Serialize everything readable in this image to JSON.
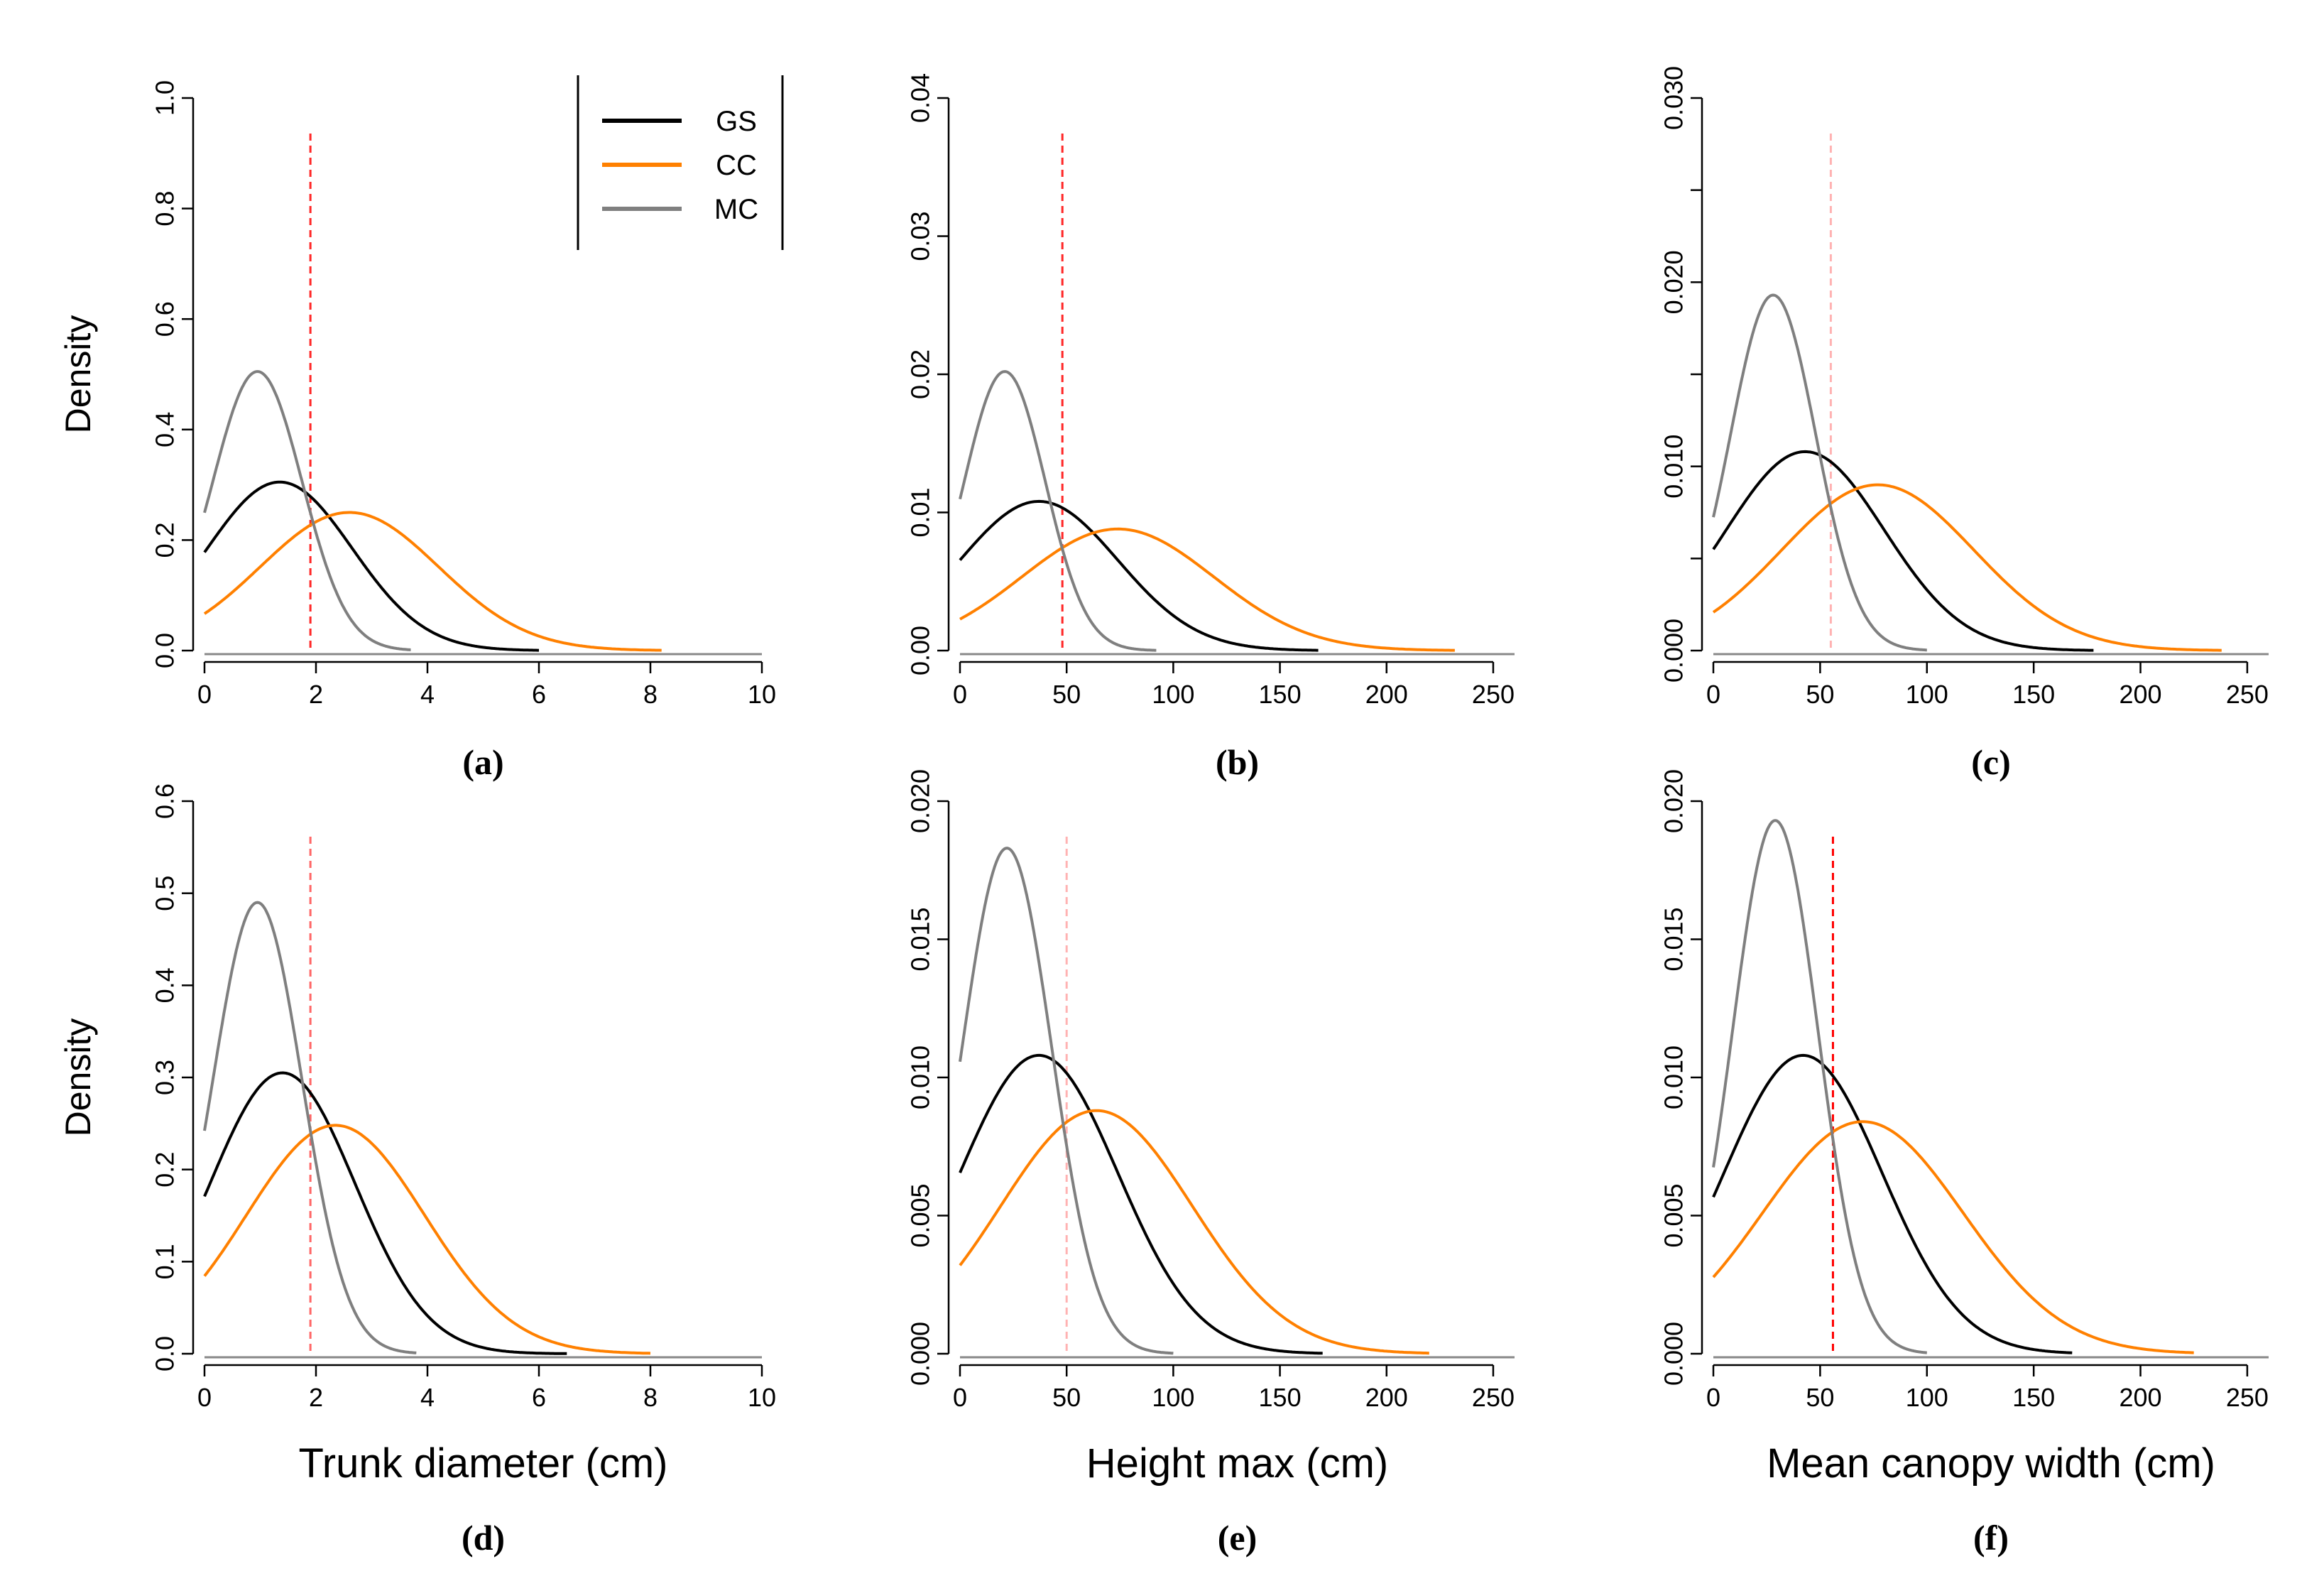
{
  "colors": {
    "GS": "#000000",
    "CC": "#ff8000",
    "MC": "#7f7f7f",
    "threshold": "#ff0000"
  },
  "legend": {
    "entries": [
      {
        "name": "GS",
        "color": "#000000"
      },
      {
        "name": "CC",
        "color": "#ff8000"
      },
      {
        "name": "MC",
        "color": "#7f7f7f"
      }
    ],
    "placement": "top-right of panel (a)"
  },
  "chart_data": [
    {
      "id": "a",
      "type": "line",
      "panel_label": "(a)",
      "xlabel": "",
      "ylabel": "Density",
      "xlim": [
        0,
        10
      ],
      "ylim": [
        0,
        1.0
      ],
      "xticks": [
        0,
        2,
        4,
        6,
        8,
        10
      ],
      "xtick_labels": [
        "0",
        "2",
        "4",
        "6",
        "8",
        "10"
      ],
      "yticks": [
        0,
        0.2,
        0.4,
        0.6,
        0.8,
        1.0
      ],
      "ytick_labels": [
        "0.0",
        "0.2",
        "0.4",
        "0.6",
        "0.8",
        "1.0"
      ],
      "threshold_x": 1.9,
      "threshold_opacity": 0.85,
      "series": [
        {
          "name": "GS",
          "peak_x": 1.35,
          "peak_y": 0.305,
          "sd": 1.3,
          "x_end": 6.0
        },
        {
          "name": "CC",
          "peak_x": 2.6,
          "peak_y": 0.25,
          "sd": 1.6,
          "x_end": 8.2
        },
        {
          "name": "MC",
          "peak_x": 0.95,
          "peak_y": 0.505,
          "sd": 0.8,
          "x_end": 3.7
        }
      ]
    },
    {
      "id": "b",
      "type": "line",
      "panel_label": "(b)",
      "xlabel": "",
      "ylabel": "",
      "xlim": [
        0,
        260
      ],
      "ylim": [
        0,
        0.04
      ],
      "xticks": [
        0,
        50,
        100,
        150,
        200,
        250
      ],
      "xtick_labels": [
        "0",
        "50",
        "100",
        "150",
        "200",
        "250"
      ],
      "yticks": [
        0,
        0.01,
        0.02,
        0.03,
        0.04
      ],
      "ytick_labels": [
        "0.00",
        "0.01",
        "0.02",
        "0.03",
        "0.04"
      ],
      "threshold_x": 48,
      "threshold_opacity": 0.85,
      "series": [
        {
          "name": "GS",
          "peak_x": 37,
          "peak_y": 0.0108,
          "sd": 37,
          "x_end": 168
        },
        {
          "name": "CC",
          "peak_x": 74,
          "peak_y": 0.0088,
          "sd": 45,
          "x_end": 232
        },
        {
          "name": "MC",
          "peak_x": 21,
          "peak_y": 0.0202,
          "sd": 19,
          "x_end": 92
        }
      ]
    },
    {
      "id": "c",
      "type": "line",
      "panel_label": "(c)",
      "xlabel": "",
      "ylabel": "",
      "xlim": [
        0,
        260
      ],
      "ylim": [
        0,
        0.03
      ],
      "xticks": [
        0,
        50,
        100,
        150,
        200,
        250
      ],
      "xtick_labels": [
        "0",
        "50",
        "100",
        "150",
        "200",
        "250"
      ],
      "yticks": [
        0,
        0.01,
        0.02,
        0.03
      ],
      "ytick_labels": [
        "0.000",
        "0.010",
        "0.020",
        "0.030"
      ],
      "yticks_minor": [
        0.005,
        0.015,
        0.025
      ],
      "threshold_x": 55,
      "threshold_opacity": 0.3,
      "series": [
        {
          "name": "GS",
          "peak_x": 43,
          "peak_y": 0.0108,
          "sd": 37,
          "x_end": 178
        },
        {
          "name": "CC",
          "peak_x": 77,
          "peak_y": 0.009,
          "sd": 45,
          "x_end": 238
        },
        {
          "name": "MC",
          "peak_x": 28,
          "peak_y": 0.0193,
          "sd": 20,
          "x_end": 100
        }
      ]
    },
    {
      "id": "d",
      "type": "line",
      "panel_label": "(d)",
      "xlabel": "Trunk diameter (cm)",
      "ylabel": "Density",
      "xlim": [
        0,
        10
      ],
      "ylim": [
        0,
        0.6
      ],
      "xticks": [
        0,
        2,
        4,
        6,
        8,
        10
      ],
      "xtick_labels": [
        "0",
        "2",
        "4",
        "6",
        "8",
        "10"
      ],
      "yticks": [
        0,
        0.1,
        0.2,
        0.3,
        0.4,
        0.5,
        0.6
      ],
      "ytick_labels": [
        "0.0",
        "0.1",
        "0.2",
        "0.3",
        "0.4",
        "0.5",
        "0.6"
      ],
      "threshold_x": 1.9,
      "threshold_opacity": 0.6,
      "series": [
        {
          "name": "GS",
          "peak_x": 1.4,
          "peak_y": 0.305,
          "sd": 1.3,
          "x_end": 6.5
        },
        {
          "name": "CC",
          "peak_x": 2.35,
          "peak_y": 0.248,
          "sd": 1.6,
          "x_end": 8.0
        },
        {
          "name": "MC",
          "peak_x": 0.95,
          "peak_y": 0.49,
          "sd": 0.8,
          "x_end": 3.8
        }
      ]
    },
    {
      "id": "e",
      "type": "line",
      "panel_label": "(e)",
      "xlabel": "Height max (cm)",
      "ylabel": "",
      "xlim": [
        0,
        260
      ],
      "ylim": [
        0,
        0.02
      ],
      "xticks": [
        0,
        50,
        100,
        150,
        200,
        250
      ],
      "xtick_labels": [
        "0",
        "50",
        "100",
        "150",
        "200",
        "250"
      ],
      "yticks": [
        0,
        0.005,
        0.01,
        0.015,
        0.02
      ],
      "ytick_labels": [
        "0.000",
        "0.005",
        "0.010",
        "0.015",
        "0.020"
      ],
      "threshold_x": 50,
      "threshold_opacity": 0.3,
      "series": [
        {
          "name": "GS",
          "peak_x": 37,
          "peak_y": 0.0108,
          "sd": 37,
          "x_end": 170
        },
        {
          "name": "CC",
          "peak_x": 64,
          "peak_y": 0.0088,
          "sd": 45,
          "x_end": 220
        },
        {
          "name": "MC",
          "peak_x": 22,
          "peak_y": 0.0183,
          "sd": 21,
          "x_end": 100
        }
      ]
    },
    {
      "id": "f",
      "type": "line",
      "panel_label": "(f)",
      "xlabel": "Mean canopy width (cm)",
      "ylabel": "",
      "xlim": [
        0,
        260
      ],
      "ylim": [
        0,
        0.02
      ],
      "xticks": [
        0,
        50,
        100,
        150,
        200,
        250
      ],
      "xtick_labels": [
        "0",
        "50",
        "100",
        "150",
        "200",
        "250"
      ],
      "yticks": [
        0,
        0.005,
        0.01,
        0.015,
        0.02
      ],
      "ytick_labels": [
        "0.000",
        "0.005",
        "0.010",
        "0.015",
        "0.020"
      ],
      "threshold_x": 56,
      "threshold_opacity": 1.0,
      "series": [
        {
          "name": "GS",
          "peak_x": 42,
          "peak_y": 0.0108,
          "sd": 37,
          "x_end": 168
        },
        {
          "name": "CC",
          "peak_x": 70,
          "peak_y": 0.0084,
          "sd": 47,
          "x_end": 225
        },
        {
          "name": "MC",
          "peak_x": 29,
          "peak_y": 0.0193,
          "sd": 20,
          "x_end": 100
        }
      ]
    }
  ]
}
